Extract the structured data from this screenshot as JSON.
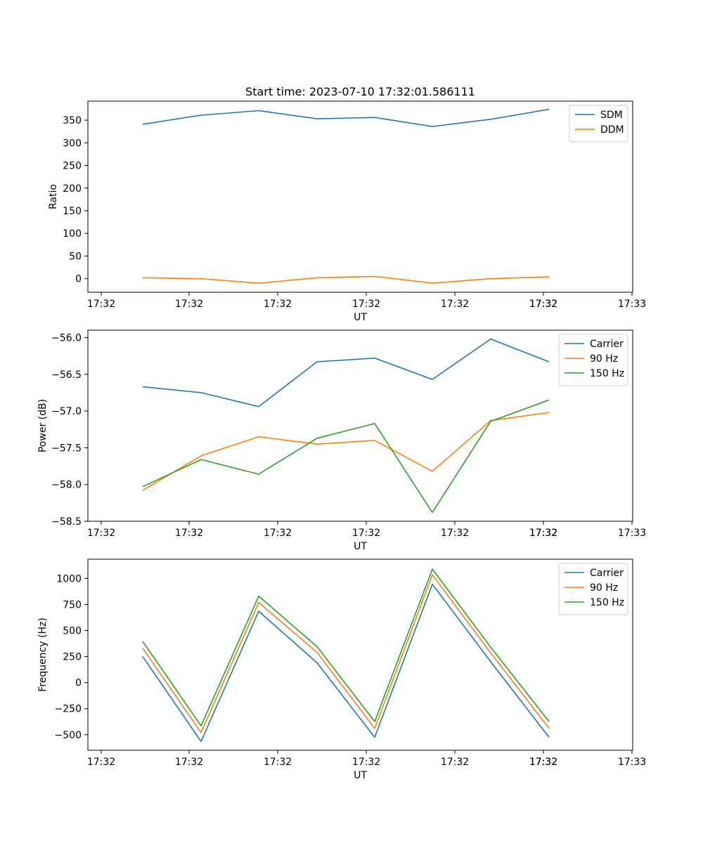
{
  "chart_data": [
    {
      "type": "line",
      "title": "Start time: 2023-07-10 17:32:01.586111",
      "xlabel": "UT",
      "ylabel": "Ratio",
      "x_tick_labels": [
        "17:32",
        "17:32",
        "17:32",
        "17:32",
        "17:32",
        "17:32",
        "17:32",
        "17:33"
      ],
      "ylim": [
        -30,
        392
      ],
      "y_ticks": [
        0,
        50,
        100,
        150,
        200,
        250,
        300,
        350
      ],
      "y_tick_labels": [
        "0",
        "50",
        "100",
        "150",
        "200",
        "250",
        "300",
        "350"
      ],
      "legend_position": "top-right",
      "series": [
        {
          "name": "SDM",
          "color": "#1f77b4",
          "values": [
            341,
            361,
            371,
            353,
            356,
            336,
            352,
            374
          ]
        },
        {
          "name": "DDM",
          "color": "#ff7f0e",
          "values": [
            2,
            0,
            -10,
            2,
            5,
            -10,
            0,
            4
          ]
        }
      ]
    },
    {
      "type": "line",
      "title": "",
      "xlabel": "UT",
      "ylabel": "Power (dB)",
      "x_tick_labels": [
        "17:32",
        "17:32",
        "17:32",
        "17:32",
        "17:32",
        "17:32",
        "17:32",
        "17:33"
      ],
      "ylim": [
        -58.5,
        -55.9
      ],
      "y_ticks": [
        -58.5,
        -58.0,
        -57.5,
        -57.0,
        -56.5,
        -56.0
      ],
      "y_tick_labels": [
        "−58.5",
        "−58.0",
        "−57.5",
        "−57.0",
        "−56.5",
        "−56.0"
      ],
      "legend_position": "top-right",
      "series": [
        {
          "name": "Carrier",
          "color": "#1f77b4",
          "values": [
            -56.67,
            -56.75,
            -56.94,
            -56.33,
            -56.28,
            -56.57,
            -56.02,
            -56.33
          ]
        },
        {
          "name": "90 Hz",
          "color": "#ff7f0e",
          "values": [
            -58.08,
            -57.61,
            -57.35,
            -57.45,
            -57.4,
            -57.82,
            -57.13,
            -57.02
          ]
        },
        {
          "name": "150 Hz",
          "color": "#2ca02c",
          "values": [
            -58.03,
            -57.66,
            -57.86,
            -57.37,
            -57.17,
            -58.38,
            -57.14,
            -56.85
          ]
        }
      ]
    },
    {
      "type": "line",
      "title": "",
      "xlabel": "UT",
      "ylabel": "Frequency (Hz)",
      "x_tick_labels": [
        "17:32",
        "17:32",
        "17:32",
        "17:32",
        "17:32",
        "17:32",
        "17:32",
        "17:33"
      ],
      "ylim": [
        -650,
        1185
      ],
      "y_ticks": [
        -500,
        -250,
        0,
        250,
        500,
        750,
        1000
      ],
      "y_tick_labels": [
        "−500",
        "−250",
        "0",
        "250",
        "500",
        "750",
        "1000"
      ],
      "legend_position": "top-right",
      "series": [
        {
          "name": "Carrier",
          "color": "#1f77b4",
          "values": [
            250,
            -565,
            685,
            190,
            -525,
            945,
            200,
            -525
          ]
        },
        {
          "name": "90 Hz",
          "color": "#ff7f0e",
          "values": [
            330,
            -480,
            770,
            290,
            -440,
            1035,
            285,
            -440
          ]
        },
        {
          "name": "150 Hz",
          "color": "#2ca02c",
          "values": [
            395,
            -415,
            830,
            345,
            -375,
            1090,
            340,
            -375
          ]
        }
      ]
    }
  ]
}
